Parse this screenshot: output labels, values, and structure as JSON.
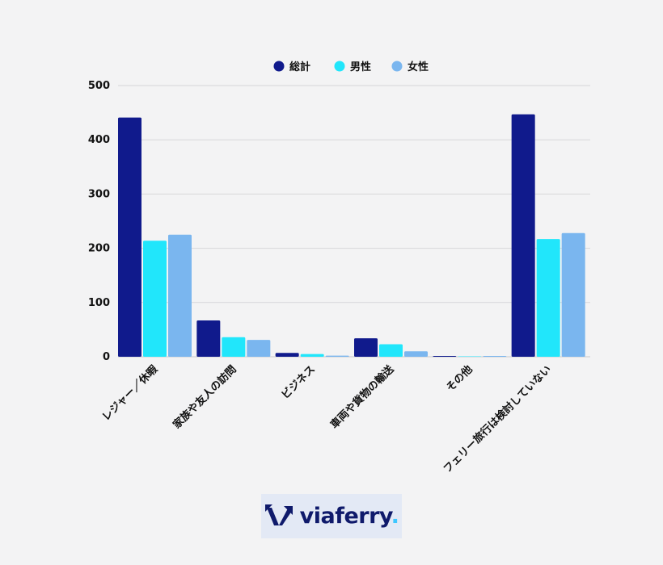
{
  "chart_data": {
    "type": "bar",
    "categories": [
      "レジャー／休暇",
      "家族や友人の訪問",
      "ビジネス",
      "車両や貨物の輸送",
      "その他",
      "フェリー旅行は検討していない"
    ],
    "series": [
      {
        "name": "総計",
        "color": "#101a8c",
        "values": [
          441,
          67,
          7,
          34,
          1,
          447
        ]
      },
      {
        "name": "男性",
        "color": "#21e6fb",
        "values": [
          214,
          36,
          5,
          23,
          0,
          217
        ]
      },
      {
        "name": "女性",
        "color": "#7ab6ef",
        "values": [
          225,
          31,
          2,
          10,
          1,
          228
        ]
      }
    ],
    "ylim": [
      0,
      500
    ],
    "yticks": [
      0,
      100,
      200,
      300,
      400,
      500
    ],
    "legend_position": "top-center",
    "grid": true
  },
  "branding": {
    "logo_text": "viaferry",
    "logo_dot": ".",
    "logo_color": "#0f1a6b"
  }
}
